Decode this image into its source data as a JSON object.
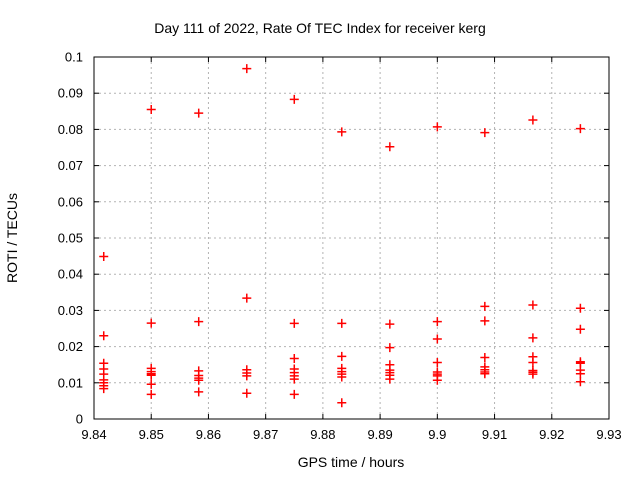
{
  "chart_data": {
    "type": "scatter",
    "title": "Day 111 of 2022, Rate Of TEC Index for receiver kerg",
    "xlabel": "GPS time / hours",
    "ylabel": "ROTI / TECUs",
    "xlim": [
      9.84,
      9.93
    ],
    "ylim": [
      0,
      0.1
    ],
    "grid": true,
    "legend": "none",
    "xtick_values": [
      9.84,
      9.85,
      9.86,
      9.87,
      9.88,
      9.89,
      9.9,
      9.91,
      9.92,
      9.93
    ],
    "xtick_labels": [
      "9.84",
      "9.85",
      "9.86",
      "9.87",
      "9.88",
      "9.89",
      "9.9",
      "9.91",
      "9.92",
      "9.93"
    ],
    "ytick_values": [
      0,
      0.01,
      0.02,
      0.03,
      0.04,
      0.05,
      0.06,
      0.07,
      0.08,
      0.09,
      0.1
    ],
    "ytick_labels": [
      "0",
      "0.01",
      "0.02",
      "0.03",
      "0.04",
      "0.05",
      "0.06",
      "0.07",
      "0.08",
      "0.09",
      "0.1"
    ],
    "marker": "plus",
    "colors": {
      "marker": "#ff0000",
      "grid": "#b3b3b3",
      "axis": "#000000",
      "background": "#ffffff"
    },
    "series": [
      {
        "name": "ROTI",
        "points": [
          [
            9.8417,
            0.0449
          ],
          [
            9.8417,
            0.023
          ],
          [
            9.8417,
            0.0154
          ],
          [
            9.8417,
            0.0138
          ],
          [
            9.8417,
            0.0124
          ],
          [
            9.8417,
            0.0108
          ],
          [
            9.8417,
            0.01
          ],
          [
            9.8417,
            0.0092
          ],
          [
            9.8417,
            0.0084
          ],
          [
            9.85,
            0.0855
          ],
          [
            9.85,
            0.0265
          ],
          [
            9.85,
            0.014
          ],
          [
            9.85,
            0.0131
          ],
          [
            9.85,
            0.0125
          ],
          [
            9.85,
            0.0121
          ],
          [
            9.85,
            0.0096
          ],
          [
            9.85,
            0.0068
          ],
          [
            9.8583,
            0.0845
          ],
          [
            9.8583,
            0.0269
          ],
          [
            9.8583,
            0.0133
          ],
          [
            9.8583,
            0.012
          ],
          [
            9.8583,
            0.0113
          ],
          [
            9.8583,
            0.0107
          ],
          [
            9.8583,
            0.0075
          ],
          [
            9.8667,
            0.0968
          ],
          [
            9.8667,
            0.0334
          ],
          [
            9.8667,
            0.0136
          ],
          [
            9.8667,
            0.0127
          ],
          [
            9.8667,
            0.0119
          ],
          [
            9.8667,
            0.0071
          ],
          [
            9.875,
            0.0883
          ],
          [
            9.875,
            0.0264
          ],
          [
            9.875,
            0.0167
          ],
          [
            9.875,
            0.0138
          ],
          [
            9.875,
            0.0128
          ],
          [
            9.875,
            0.0119
          ],
          [
            9.875,
            0.011
          ],
          [
            9.875,
            0.0068
          ],
          [
            9.8833,
            0.0793
          ],
          [
            9.8833,
            0.0264
          ],
          [
            9.8833,
            0.0173
          ],
          [
            9.8833,
            0.014
          ],
          [
            9.8833,
            0.0131
          ],
          [
            9.8833,
            0.0124
          ],
          [
            9.8833,
            0.0116
          ],
          [
            9.8833,
            0.0045
          ],
          [
            9.8917,
            0.0752
          ],
          [
            9.8917,
            0.0262
          ],
          [
            9.8917,
            0.0197
          ],
          [
            9.8917,
            0.015
          ],
          [
            9.8917,
            0.0135
          ],
          [
            9.8917,
            0.0128
          ],
          [
            9.8917,
            0.0121
          ],
          [
            9.8917,
            0.011
          ],
          [
            9.9,
            0.0807
          ],
          [
            9.9,
            0.0269
          ],
          [
            9.9,
            0.0221
          ],
          [
            9.9,
            0.0156
          ],
          [
            9.9,
            0.013
          ],
          [
            9.9,
            0.0124
          ],
          [
            9.9,
            0.0119
          ],
          [
            9.9,
            0.0107
          ],
          [
            9.9083,
            0.0791
          ],
          [
            9.9083,
            0.0311
          ],
          [
            9.9083,
            0.0271
          ],
          [
            9.9083,
            0.017
          ],
          [
            9.9083,
            0.0144
          ],
          [
            9.9083,
            0.0136
          ],
          [
            9.9083,
            0.013
          ],
          [
            9.9083,
            0.0125
          ],
          [
            9.9167,
            0.0826
          ],
          [
            9.9167,
            0.0315
          ],
          [
            9.9167,
            0.0224
          ],
          [
            9.9167,
            0.0172
          ],
          [
            9.9167,
            0.0156
          ],
          [
            9.9167,
            0.0134
          ],
          [
            9.9167,
            0.0129
          ],
          [
            9.9167,
            0.0124
          ],
          [
            9.925,
            0.0802
          ],
          [
            9.925,
            0.0306
          ],
          [
            9.925,
            0.0248
          ],
          [
            9.925,
            0.0158
          ],
          [
            9.925,
            0.0154
          ],
          [
            9.925,
            0.0135
          ],
          [
            9.925,
            0.0125
          ],
          [
            9.925,
            0.0103
          ]
        ]
      }
    ]
  }
}
